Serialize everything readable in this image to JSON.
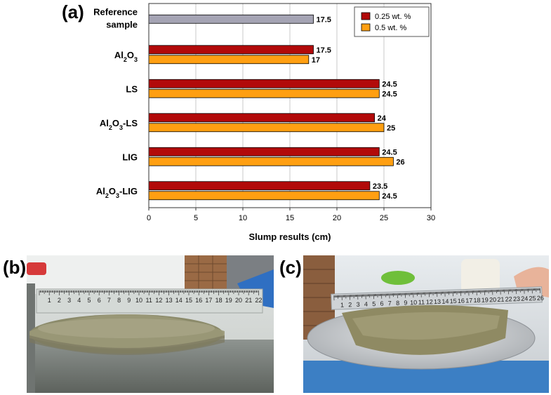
{
  "panels": {
    "a": "(a)",
    "b": "(b)",
    "c": "(c)"
  },
  "chart_data": {
    "type": "bar",
    "orientation": "horizontal",
    "title": "",
    "xlabel": "Slump results (cm)",
    "ylabel": "",
    "xlim": [
      0,
      30
    ],
    "xticks": [
      0,
      5,
      10,
      15,
      20,
      25,
      30
    ],
    "grid": "vertical",
    "legend_position": "top-right",
    "categories": [
      {
        "id": "ref",
        "line1": "Reference",
        "line2": "sample"
      },
      {
        "id": "al2o3",
        "parts": [
          [
            "Al",
            ""
          ],
          [
            "2",
            "sub"
          ],
          [
            "O",
            ""
          ],
          [
            "3",
            "sub"
          ]
        ]
      },
      {
        "id": "ls",
        "parts": [
          [
            "LS",
            ""
          ]
        ]
      },
      {
        "id": "al2o3-ls",
        "parts": [
          [
            "Al",
            ""
          ],
          [
            "2",
            "sub"
          ],
          [
            "O",
            ""
          ],
          [
            "3",
            "sub"
          ],
          [
            "-LS",
            ""
          ]
        ]
      },
      {
        "id": "lig",
        "parts": [
          [
            "LIG",
            ""
          ]
        ]
      },
      {
        "id": "al2o3-lig",
        "parts": [
          [
            "Al",
            ""
          ],
          [
            "2",
            "sub"
          ],
          [
            "O",
            ""
          ],
          [
            "3",
            "sub"
          ],
          [
            "-LIG",
            ""
          ]
        ]
      }
    ],
    "reference": {
      "value": 17.5,
      "label": "17.5",
      "color": "#A5A4B4"
    },
    "series": [
      {
        "name": "0.25 wt. %",
        "color": "#B20A0A",
        "values": [
          null,
          17.5,
          24.5,
          24,
          24.5,
          23.5
        ],
        "labels": [
          "",
          "17.5",
          "24.5",
          "24",
          "24.5",
          "23.5"
        ]
      },
      {
        "name": "0.5 wt. %",
        "color": "#FF9F12",
        "values": [
          null,
          17,
          24.5,
          25,
          26,
          24.5
        ],
        "labels": [
          "",
          "17",
          "24.5",
          "25",
          "26",
          "24.5"
        ]
      }
    ]
  },
  "photos": {
    "ruler_b_numbers": [
      "1",
      "2",
      "3",
      "4",
      "5",
      "6",
      "7",
      "8",
      "9",
      "10",
      "11",
      "12",
      "13",
      "14",
      "15",
      "16",
      "17",
      "18",
      "19",
      "20",
      "21",
      "22"
    ],
    "ruler_c_numbers": [
      "1",
      "2",
      "3",
      "4",
      "5",
      "6",
      "7",
      "8",
      "9",
      "10",
      "11",
      "12",
      "13",
      "14",
      "15",
      "16",
      "17",
      "18",
      "19",
      "20",
      "21",
      "22",
      "23",
      "24",
      "25",
      "26"
    ]
  }
}
